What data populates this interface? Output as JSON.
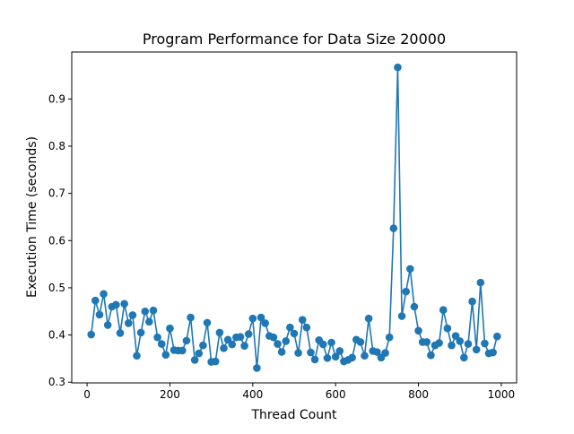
{
  "chart_data": {
    "type": "line",
    "title": "Program Performance for Data Size 20000",
    "xlabel": "Thread Count",
    "ylabel": "Execution Time (seconds)",
    "xlim": [
      -37,
      1037
    ],
    "ylim": [
      0.2985,
      0.9995
    ],
    "x_ticks": [
      0,
      200,
      400,
      600,
      800,
      1000
    ],
    "x_tick_labels": [
      "0",
      "200",
      "400",
      "600",
      "800",
      "1000"
    ],
    "y_ticks": [
      0.3,
      0.4,
      0.5,
      0.6,
      0.7,
      0.8,
      0.9
    ],
    "y_tick_labels": [
      "0.3",
      "0.4",
      "0.5",
      "0.6",
      "0.7",
      "0.8",
      "0.9"
    ],
    "grid": false,
    "series_color": "#1f77b4",
    "marker": "circle",
    "x": [
      10,
      20,
      30,
      40,
      50,
      60,
      70,
      80,
      90,
      100,
      110,
      120,
      130,
      140,
      150,
      160,
      170,
      180,
      190,
      200,
      210,
      220,
      230,
      240,
      250,
      260,
      270,
      280,
      290,
      300,
      310,
      320,
      330,
      340,
      350,
      360,
      370,
      380,
      390,
      400,
      410,
      420,
      430,
      440,
      450,
      460,
      470,
      480,
      490,
      500,
      510,
      520,
      530,
      540,
      550,
      560,
      570,
      580,
      590,
      600,
      610,
      620,
      630,
      640,
      650,
      660,
      670,
      680,
      690,
      700,
      710,
      720,
      730,
      740,
      750,
      760,
      770,
      780,
      790,
      800,
      810,
      820,
      830,
      840,
      850,
      860,
      870,
      880,
      890,
      900,
      910,
      920,
      930,
      940,
      950,
      960,
      970,
      980,
      990
    ],
    "y": [
      0.401,
      0.473,
      0.443,
      0.487,
      0.421,
      0.46,
      0.464,
      0.404,
      0.466,
      0.425,
      0.442,
      0.356,
      0.405,
      0.45,
      0.428,
      0.452,
      0.395,
      0.381,
      0.358,
      0.414,
      0.368,
      0.367,
      0.367,
      0.388,
      0.437,
      0.347,
      0.361,
      0.378,
      0.426,
      0.343,
      0.344,
      0.405,
      0.372,
      0.39,
      0.38,
      0.395,
      0.396,
      0.377,
      0.402,
      0.435,
      0.33,
      0.437,
      0.425,
      0.398,
      0.395,
      0.381,
      0.364,
      0.387,
      0.416,
      0.403,
      0.362,
      0.432,
      0.416,
      0.363,
      0.348,
      0.389,
      0.38,
      0.351,
      0.384,
      0.354,
      0.366,
      0.344,
      0.347,
      0.352,
      0.39,
      0.385,
      0.356,
      0.435,
      0.366,
      0.364,
      0.352,
      0.362,
      0.395,
      0.626,
      0.967,
      0.44,
      0.492,
      0.54,
      0.46,
      0.409,
      0.385,
      0.385,
      0.357,
      0.378,
      0.383,
      0.453,
      0.414,
      0.378,
      0.398,
      0.387,
      0.352,
      0.381,
      0.471,
      0.369,
      0.511,
      0.382,
      0.361,
      0.363,
      0.397
    ]
  }
}
